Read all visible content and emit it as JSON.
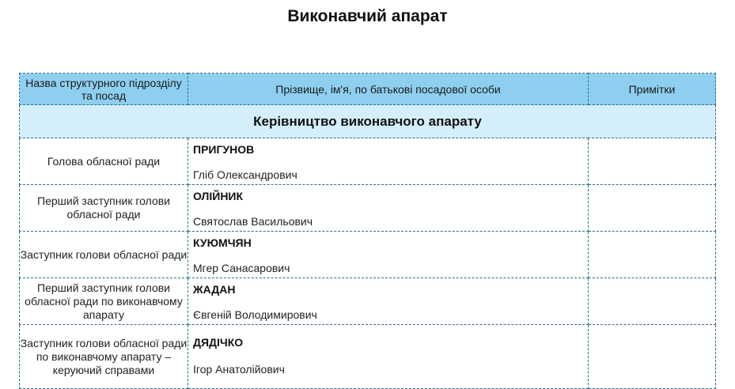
{
  "title": "Виконавчий апарат",
  "headers": [
    "Назва структурного підрозділу та посад",
    "Прізвище, ім'я, по батькові посадової особи",
    "Примітки"
  ],
  "section": "Керівництво виконавчого апарату",
  "rows": [
    {
      "position": "Голова обласної ради",
      "surname": "ПРИГУНОВ",
      "given": "Гліб Олександрович",
      "note": ""
    },
    {
      "position": "Перший заступник голови обласної ради",
      "surname": "ОЛІЙНИК",
      "given": "Святослав Васильович",
      "note": ""
    },
    {
      "position": "Заступник голови обласної ради",
      "surname": "КУЮМЧЯН",
      "given": "Мгер Санасарович",
      "note": ""
    },
    {
      "position": "Перший заступник голови обласної ради по виконавчому апарату",
      "surname": "ЖАДАН",
      "given": "Євгеній Володимирович",
      "note": ""
    },
    {
      "position": "Заступник голови обласної ради по виконавчому апарату – керуючий справами",
      "surname": "ДЯДІЧКО",
      "given": "Ігор Анатолійович",
      "note": ""
    }
  ]
}
